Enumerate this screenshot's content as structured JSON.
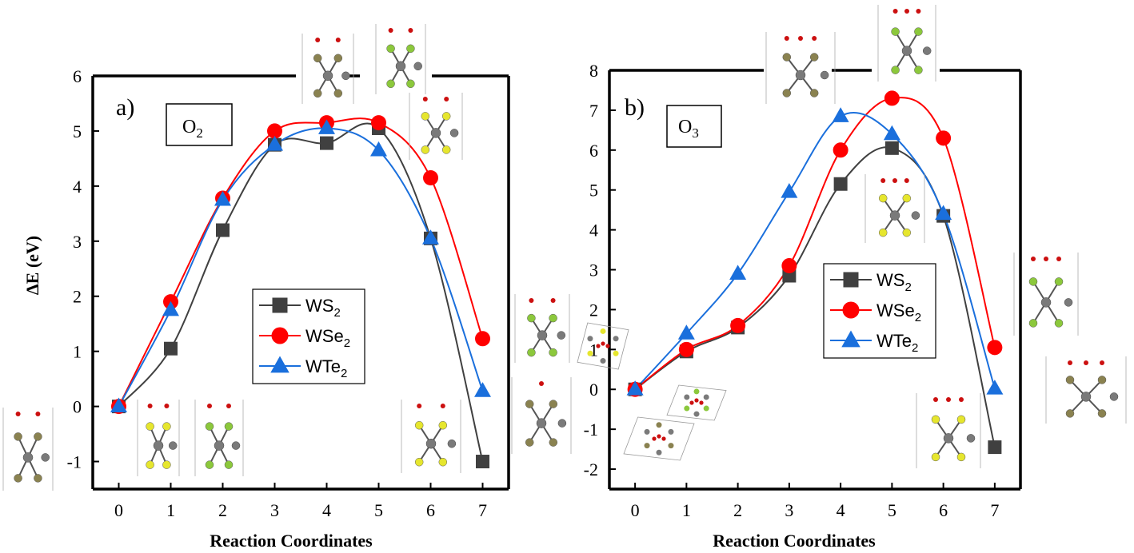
{
  "colors": {
    "WS2": "#404040",
    "WSe2": "#ff0000",
    "WTe2": "#1a6fdc",
    "tungsten": "#7a7a7a",
    "sulfur": "#e6e62e",
    "selenium": "#8cc83c",
    "tellurium": "#8a8250",
    "oxygen": "#cc1010"
  },
  "chart_data": [
    {
      "id": "a",
      "type": "line",
      "panel_label": "a)",
      "gas_label": "O",
      "gas_subscript": "2",
      "xlabel": "Reaction Coordinates",
      "ylabel": "ΔE (eV)",
      "x": [
        0,
        1,
        2,
        3,
        4,
        5,
        6,
        7
      ],
      "xlim": [
        -0.5,
        7.5
      ],
      "ylim": [
        -1.5,
        6
      ],
      "xticks": [
        "0",
        "1",
        "2",
        "3",
        "4",
        "5",
        "6",
        "7"
      ],
      "yticks": [
        "-1",
        "0",
        "1",
        "2",
        "3",
        "4",
        "5",
        "6"
      ],
      "legend_position": "center-right",
      "series": [
        {
          "name": "WS",
          "subscript": "2",
          "marker": "square",
          "values": [
            0,
            1.05,
            3.2,
            4.75,
            4.78,
            5.05,
            3.05,
            -1.0
          ]
        },
        {
          "name": "WSe",
          "subscript": "2",
          "marker": "circle",
          "values": [
            0,
            1.9,
            3.78,
            5.0,
            5.15,
            5.15,
            4.15,
            1.23
          ]
        },
        {
          "name": "WTe",
          "subscript": "2",
          "marker": "triangle",
          "values": [
            0,
            1.75,
            3.75,
            4.75,
            5.05,
            4.65,
            3.05,
            0.28
          ]
        }
      ]
    },
    {
      "id": "b",
      "type": "line",
      "panel_label": "b)",
      "gas_label": "O",
      "gas_subscript": "3",
      "xlabel": "Reaction Coordinates",
      "ylabel": "",
      "x": [
        0,
        1,
        2,
        3,
        4,
        5,
        6,
        7
      ],
      "xlim": [
        -0.5,
        7.5
      ],
      "ylim": [
        -2.5,
        8
      ],
      "xticks": [
        "0",
        "1",
        "2",
        "3",
        "4",
        "5",
        "6",
        "7"
      ],
      "yticks": [
        "-2",
        "-1",
        "0",
        "1",
        "2",
        "3",
        "4",
        "5",
        "6",
        "7",
        "8"
      ],
      "legend_position": "center-right",
      "series": [
        {
          "name": "WS",
          "subscript": "2",
          "marker": "square",
          "values": [
            0,
            0.95,
            1.55,
            2.85,
            5.15,
            6.05,
            4.35,
            -1.45
          ]
        },
        {
          "name": "WSe",
          "subscript": "2",
          "marker": "circle",
          "values": [
            0,
            1.0,
            1.6,
            3.1,
            6.0,
            7.3,
            6.3,
            1.05
          ]
        },
        {
          "name": "WTe",
          "subscript": "2",
          "marker": "triangle",
          "values": [
            0,
            1.4,
            2.9,
            4.95,
            6.85,
            6.4,
            4.4,
            0.02
          ]
        }
      ]
    }
  ],
  "structure_insets": [
    {
      "name": "inset-a-0",
      "panel": "a",
      "metal_layer": "tellurium",
      "oxygens": 2,
      "view": "side"
    },
    {
      "name": "inset-a-1",
      "panel": "a",
      "metal_layer": "sulfur",
      "oxygens": 2,
      "view": "side"
    },
    {
      "name": "inset-a-2",
      "panel": "a",
      "metal_layer": "selenium",
      "oxygens": 2,
      "view": "side"
    },
    {
      "name": "inset-a-4",
      "panel": "a",
      "metal_layer": "tellurium",
      "oxygens": 2,
      "view": "side"
    },
    {
      "name": "inset-a-5",
      "panel": "a",
      "metal_layer": "selenium",
      "oxygens": 2,
      "view": "side"
    },
    {
      "name": "inset-a-5b",
      "panel": "a",
      "metal_layer": "sulfur",
      "oxygens": 2,
      "view": "side"
    },
    {
      "name": "inset-a-6",
      "panel": "a",
      "metal_layer": "sulfur",
      "oxygens": 2,
      "view": "side"
    },
    {
      "name": "inset-a-7a",
      "panel": "a",
      "metal_layer": "selenium",
      "oxygens": 2,
      "view": "side"
    },
    {
      "name": "inset-a-7b",
      "panel": "a",
      "metal_layer": "tellurium",
      "oxygens": 1,
      "view": "side"
    },
    {
      "name": "inset-b-0a",
      "panel": "b",
      "metal_layer": "sulfur",
      "oxygens": 3,
      "view": "top"
    },
    {
      "name": "inset-b-0b",
      "panel": "b",
      "metal_layer": "selenium",
      "oxygens": 3,
      "view": "top"
    },
    {
      "name": "inset-b-0c",
      "panel": "b",
      "metal_layer": "tellurium",
      "oxygens": 3,
      "view": "top"
    },
    {
      "name": "inset-b-4",
      "panel": "b",
      "metal_layer": "tellurium",
      "oxygens": 3,
      "view": "side"
    },
    {
      "name": "inset-b-5",
      "panel": "b",
      "metal_layer": "selenium",
      "oxygens": 3,
      "view": "side"
    },
    {
      "name": "inset-b-5b",
      "panel": "b",
      "metal_layer": "sulfur",
      "oxygens": 3,
      "view": "side"
    },
    {
      "name": "inset-b-7a",
      "panel": "b",
      "metal_layer": "selenium",
      "oxygens": 3,
      "view": "side"
    },
    {
      "name": "inset-b-7b",
      "panel": "b",
      "metal_layer": "tellurium",
      "oxygens": 3,
      "view": "side"
    },
    {
      "name": "inset-b-6",
      "panel": "b",
      "metal_layer": "sulfur",
      "oxygens": 3,
      "view": "side"
    }
  ]
}
